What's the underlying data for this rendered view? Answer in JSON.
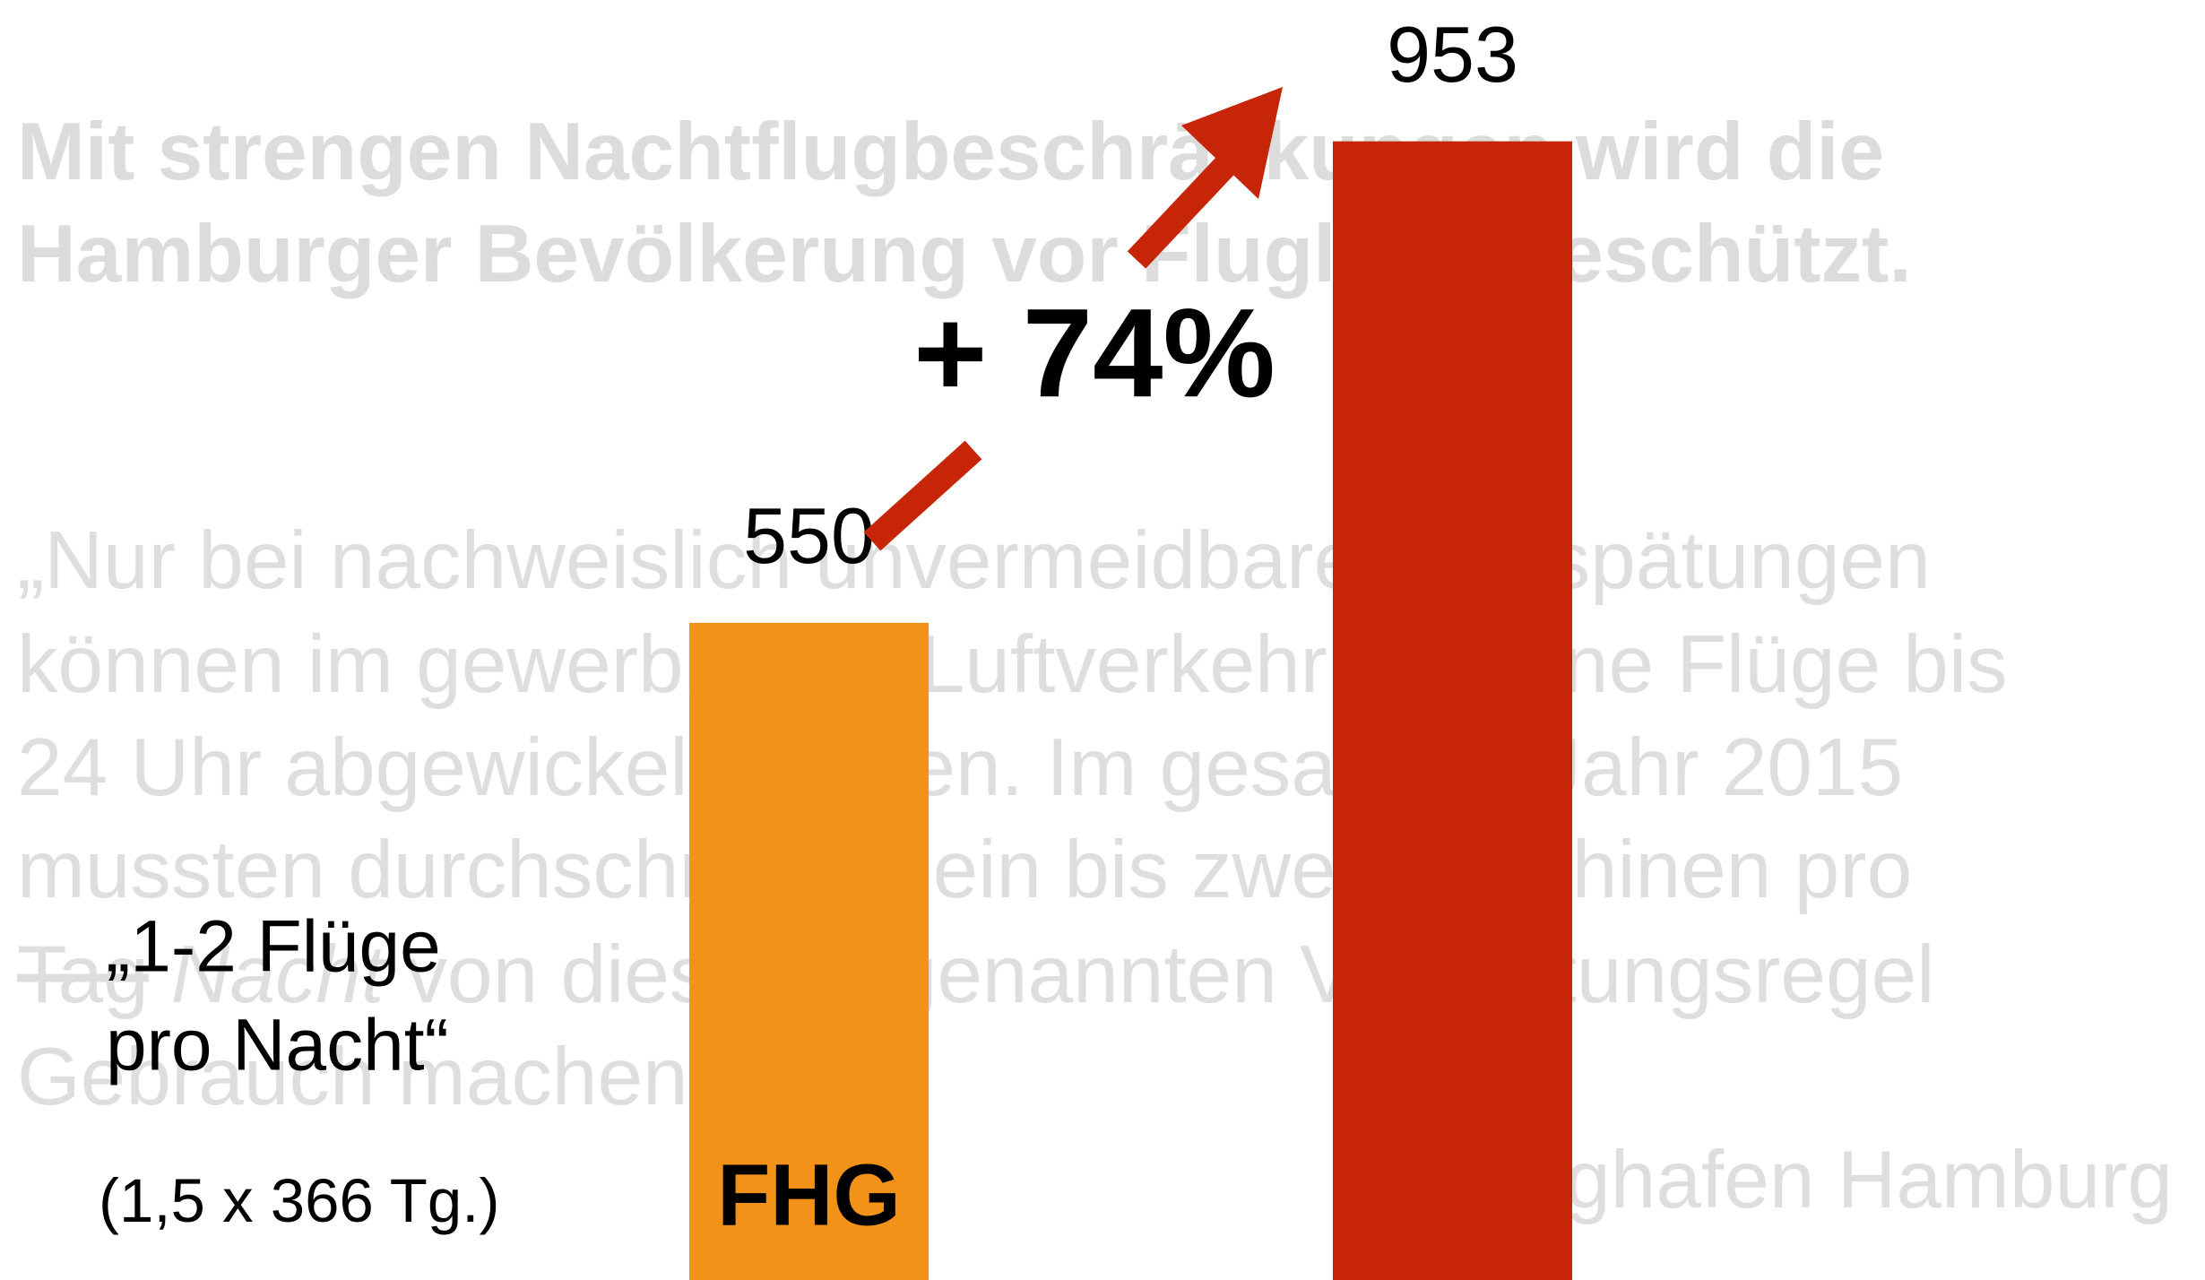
{
  "title_lines": [
    "Mit strengen Nachtflugbeschränkungen wird die",
    "Hamburger Bevölkerung vor Fluglärm geschützt."
  ],
  "quote_lines": [
    "„Nur bei nachweislich unvermeidbaren Verspätungen",
    "können im gewerblichen Luftverkehr einzelne Flüge bis",
    "24 Uhr abgewickelt werden. Im gesamten Jahr 2015",
    "mussten durchschnittlich ein bis zwei Maschinen pro",
    {
      "struck": "Tag",
      "italic": "Nacht",
      "rest": "von dieser sogenannten Verspätungsregel"
    },
    "Gebrauch machen.“"
  ],
  "source": "Flughafen Hamburg",
  "chart_data": {
    "type": "bar",
    "categories": [
      "FHG",
      null
    ],
    "values": [
      550,
      953
    ],
    "colors": [
      "#f29219",
      "#c62507"
    ],
    "ylim": [
      0,
      1000
    ],
    "annotation": "+ 74%",
    "arrow_color": "#c62507",
    "note_lines": [
      "„1-2 Flüge",
      "pro Nacht“"
    ],
    "note_detail": "(1,5 x 366 Tg.)"
  }
}
